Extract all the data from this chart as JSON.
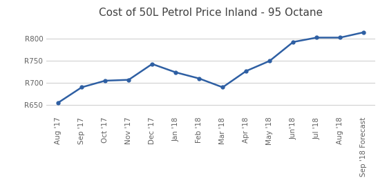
{
  "title": "Cost of 50L Petrol Price Inland - 95 Octane",
  "labels": [
    "Aug '17",
    "Sep '17",
    "Oct '17",
    "Nov '17",
    "Dec '17",
    "Jan '18",
    "Feb '18",
    "Mar '18",
    "Apr '18",
    "May '18",
    "Jun'18",
    "Jul '18",
    "Aug '18",
    "Sep '18 Forecast"
  ],
  "values": [
    655,
    690,
    705,
    707,
    743,
    724,
    710,
    690,
    727,
    750,
    793,
    803,
    803,
    815
  ],
  "yticks": [
    650,
    700,
    750,
    800
  ],
  "ytick_labels": [
    "R650",
    "R700",
    "R750",
    "R800"
  ],
  "ylim": [
    630,
    835
  ],
  "line_color": "#2E5FA3",
  "marker": "o",
  "marker_size": 3.5,
  "line_width": 1.8,
  "title_fontsize": 11,
  "tick_fontsize": 7.5,
  "background_color": "#ffffff",
  "grid_color": "#d0d0d0",
  "title_color": "#404040",
  "tick_color": "#606060"
}
